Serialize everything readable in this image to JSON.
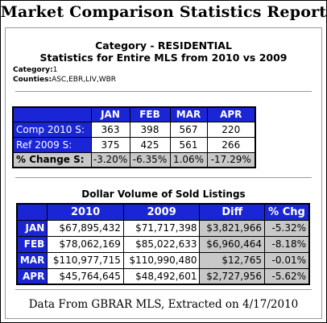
{
  "report_title": "Market Comparison Statistics Report",
  "category_title": "Category - RESIDENTIAL",
  "stats_title": "Statistics for Entire MLS from 2010 vs 2009",
  "meta": {
    "category_label": "Category:",
    "category_value": "1",
    "counties_label": "Counties:",
    "counties_value": "ASC,EBR,LIV,WBR"
  },
  "comparison_table": {
    "columns": [
      "JAN",
      "FEB",
      "MAR",
      "APR"
    ],
    "rows": [
      {
        "label": "Comp 2010 S:",
        "values": [
          "363",
          "398",
          "567",
          "220"
        ]
      },
      {
        "label": "Ref 2009 S:",
        "values": [
          "375",
          "425",
          "561",
          "266"
        ]
      },
      {
        "label": "% Change S:",
        "values": [
          "-3.20%",
          "-6.35%",
          "1.06%",
          "-17.29%"
        ]
      }
    ]
  },
  "volume_table": {
    "title": "Dollar Volume of Sold Listings",
    "columns": [
      "",
      "2010",
      "2009",
      "Diff",
      "% Chg"
    ],
    "rows": [
      {
        "label": "JAN",
        "y2010": "$67,895,432",
        "y2009": "$71,717,398",
        "diff": "$3,821,966",
        "pct": "-5.32%"
      },
      {
        "label": "FEB",
        "y2010": "$78,062,169",
        "y2009": "$85,022,633",
        "diff": "$6,960,464",
        "pct": "-8.18%"
      },
      {
        "label": "MAR",
        "y2010": "$110,977,715",
        "y2009": "$110,990,480",
        "diff": "$12,765",
        "pct": "-0.01%"
      },
      {
        "label": "APR",
        "y2010": "$45,764,645",
        "y2009": "$48,492,601",
        "diff": "$2,727,956",
        "pct": "-5.62%"
      }
    ]
  },
  "footer": "Data From GBRAR MLS, Extracted on 4/17/2010"
}
